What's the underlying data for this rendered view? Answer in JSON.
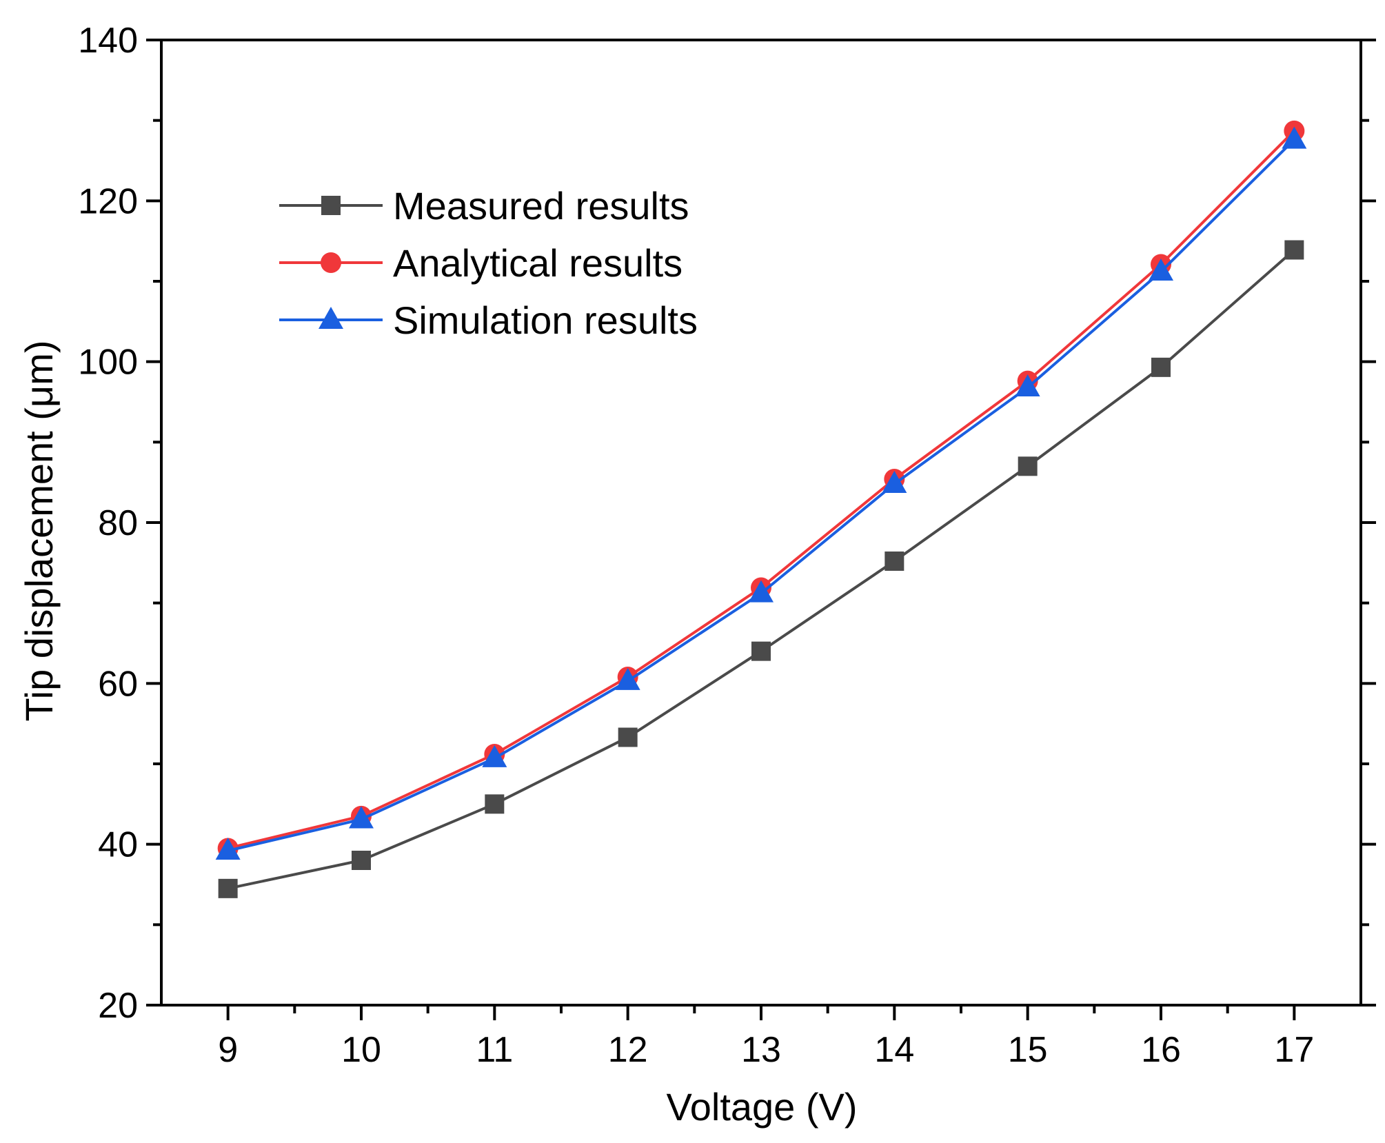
{
  "chart_data": {
    "type": "line",
    "title": "",
    "xlabel": "Voltage (V)",
    "ylabel": "Tip displacement (μm)",
    "x": [
      9,
      10,
      11,
      12,
      13,
      14,
      15,
      16,
      17
    ],
    "xlim": [
      8.5,
      17.5
    ],
    "ylim": [
      20,
      140
    ],
    "xticks": [
      "9",
      "10",
      "11",
      "12",
      "13",
      "14",
      "15",
      "16",
      "17"
    ],
    "yticks": [
      "20",
      "40",
      "60",
      "80",
      "100",
      "120",
      "140"
    ],
    "grid": false,
    "legend_position": "upper-left",
    "series": [
      {
        "name": "Measured results",
        "color": "#4a4a4a",
        "marker": "square",
        "values": [
          34.5,
          38.0,
          45.0,
          53.3,
          64.0,
          75.2,
          87.0,
          99.3,
          113.9
        ]
      },
      {
        "name": "Analytical results",
        "color": "#f0373a",
        "marker": "circle",
        "values": [
          39.5,
          43.5,
          51.2,
          60.8,
          71.9,
          85.4,
          97.6,
          112.1,
          128.7
        ]
      },
      {
        "name": "Simulation results",
        "color": "#1a5fe0",
        "marker": "triangle",
        "values": [
          39.2,
          43.1,
          50.7,
          60.3,
          71.2,
          84.8,
          96.8,
          111.2,
          127.6
        ]
      }
    ]
  }
}
